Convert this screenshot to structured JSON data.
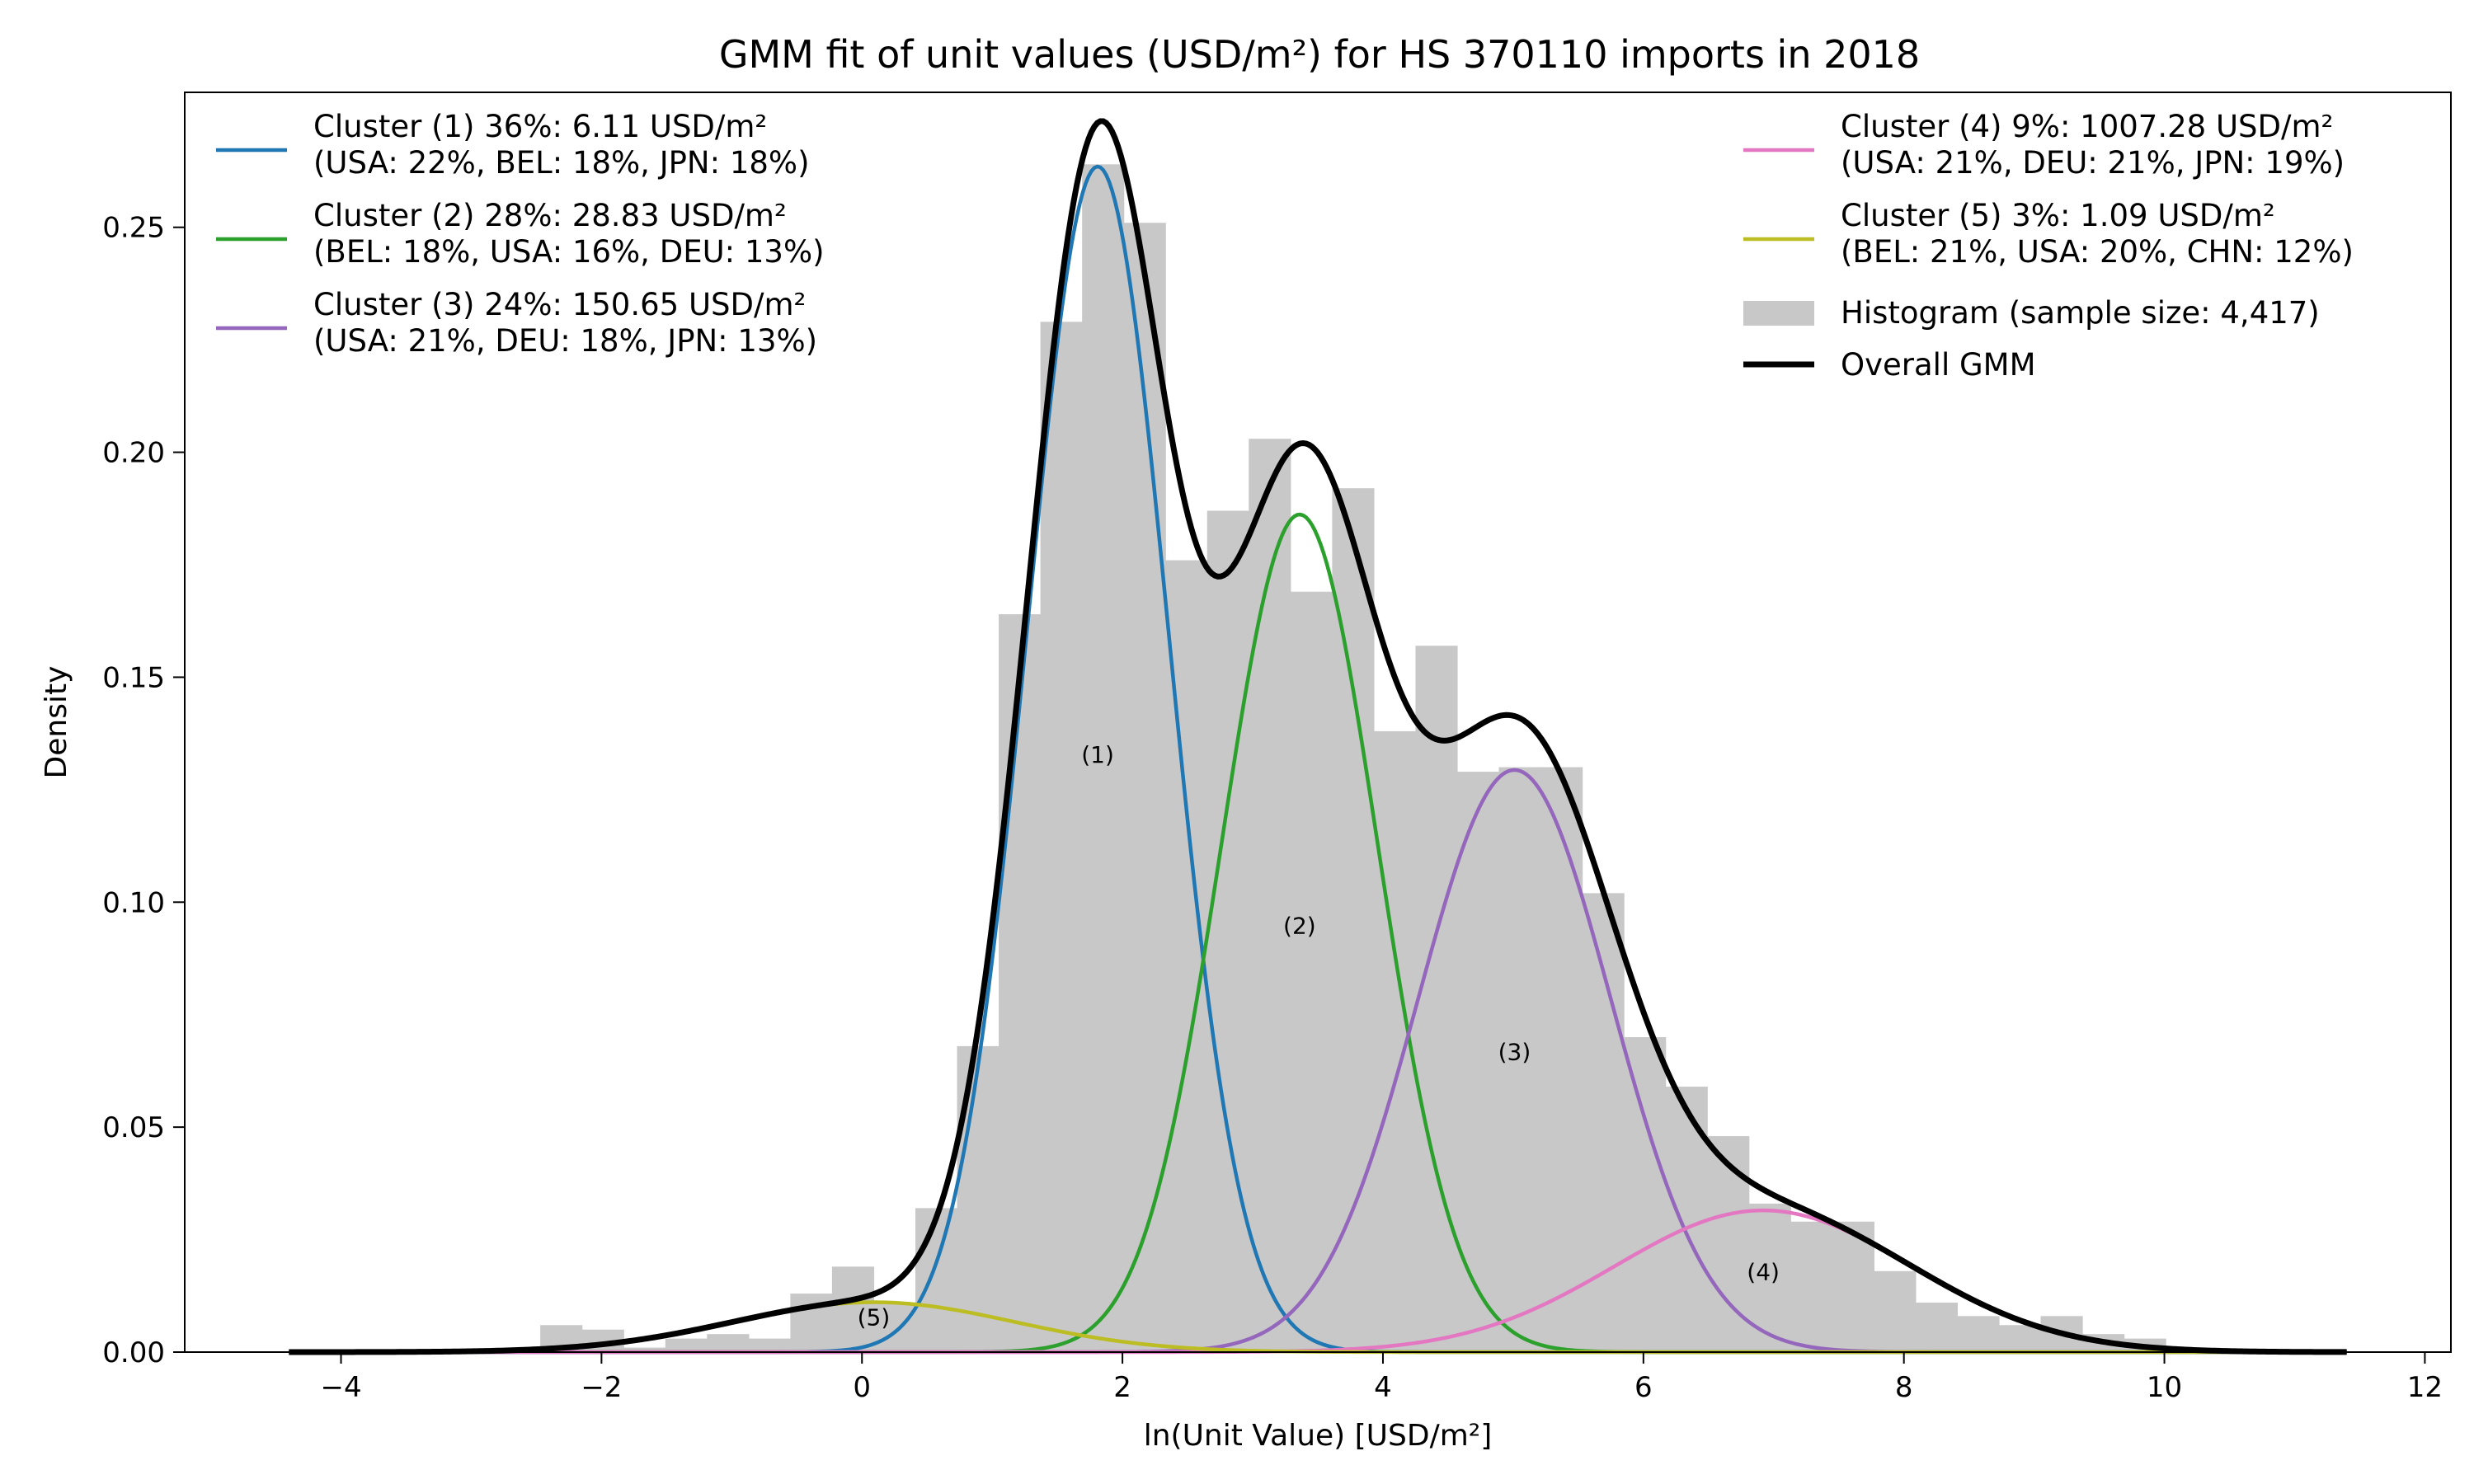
{
  "chart_data": {
    "type": "histogram+gmm",
    "title": "GMM fit of unit values (USD/m²) for HS 370110 imports in 2018",
    "xlabel": "ln(Unit Value) [USD/m²]",
    "ylabel": "Density",
    "xlim": [
      -5.2,
      12.2
    ],
    "ylim": [
      0,
      0.28
    ],
    "xticks": [
      -4,
      -2,
      0,
      2,
      4,
      6,
      8,
      10,
      12
    ],
    "yticks": [
      0.0,
      0.05,
      0.1,
      0.15,
      0.2,
      0.25
    ],
    "xtick_labels": [
      "−4",
      "−2",
      "0",
      "2",
      "4",
      "6",
      "8",
      "10",
      "12"
    ],
    "ytick_labels": [
      "0.00",
      "0.05",
      "0.10",
      "0.15",
      "0.20",
      "0.25"
    ],
    "histogram": {
      "name": "Histogram (sample size: 4,417)",
      "color": "#c8c8c8",
      "bin_edges": [
        -2.47,
        -2.15,
        -1.83,
        -1.51,
        -1.19,
        -0.87,
        -0.55,
        -0.23,
        0.09,
        0.41,
        0.73,
        1.05,
        1.37,
        1.69,
        2.01,
        2.33,
        2.65,
        2.97,
        3.29,
        3.61,
        3.93,
        4.25,
        4.57,
        4.89,
        5.21,
        5.53,
        5.85,
        6.17,
        6.49,
        6.81,
        7.13,
        7.45,
        7.77,
        8.09,
        8.41,
        8.73,
        9.05,
        9.37,
        9.69,
        10.01
      ],
      "densities": [
        0.006,
        0.005,
        0.001,
        0.003,
        0.004,
        0.003,
        0.013,
        0.019,
        0.011,
        0.032,
        0.068,
        0.164,
        0.229,
        0.264,
        0.251,
        0.176,
        0.187,
        0.203,
        0.169,
        0.192,
        0.138,
        0.157,
        0.129,
        0.13,
        0.13,
        0.102,
        0.07,
        0.059,
        0.048,
        0.033,
        0.029,
        0.029,
        0.018,
        0.011,
        0.008,
        0.006,
        0.008,
        0.004,
        0.003
      ]
    },
    "components": [
      {
        "label": "(1)",
        "weight": 0.36,
        "mean": 1.81,
        "sd": 0.545,
        "color": "#1f77b4",
        "anno_x": 1.81,
        "anno_y": 0.131
      },
      {
        "label": "(2)",
        "weight": 0.28,
        "mean": 3.36,
        "sd": 0.6,
        "color": "#2ca02c",
        "anno_x": 3.36,
        "anno_y": 0.093
      },
      {
        "label": "(3)",
        "weight": 0.24,
        "mean": 5.01,
        "sd": 0.74,
        "color": "#9467bd",
        "anno_x": 5.01,
        "anno_y": 0.065
      },
      {
        "label": "(4)",
        "weight": 0.09,
        "mean": 6.92,
        "sd": 1.14,
        "color": "#e377c2",
        "anno_x": 6.92,
        "anno_y": 0.016
      },
      {
        "label": "(5)",
        "weight": 0.03,
        "mean": 0.09,
        "sd": 1.08,
        "color": "#bcbd22",
        "anno_x": 0.09,
        "anno_y": 0.006
      }
    ],
    "overall": {
      "name": "Overall GMM",
      "color": "#000000",
      "x_range": [
        -4.4,
        11.4
      ]
    },
    "legend": {
      "left": [
        {
          "color": "#1f77b4",
          "line1": "Cluster (1) 36%: 6.11 USD/m²",
          "line2": "(USA: 22%, BEL: 18%, JPN: 18%)"
        },
        {
          "color": "#2ca02c",
          "line1": "Cluster (2) 28%: 28.83 USD/m²",
          "line2": "(BEL: 18%, USA: 16%, DEU: 13%)"
        },
        {
          "color": "#9467bd",
          "line1": "Cluster (3) 24%: 150.65 USD/m²",
          "line2": "(USA: 21%, DEU: 18%, JPN: 13%)"
        }
      ],
      "right": [
        {
          "color": "#e377c2",
          "line1": "Cluster (4) 9%: 1007.28 USD/m²",
          "line2": "(USA: 21%, DEU: 21%, JPN: 19%)"
        },
        {
          "color": "#bcbd22",
          "line1": "Cluster (5) 3%: 1.09 USD/m²",
          "line2": "(BEL: 21%, USA: 20%, CHN: 12%)"
        }
      ],
      "histogram_label": "Histogram (sample size: 4,417)",
      "overall_label": "Overall GMM"
    }
  }
}
